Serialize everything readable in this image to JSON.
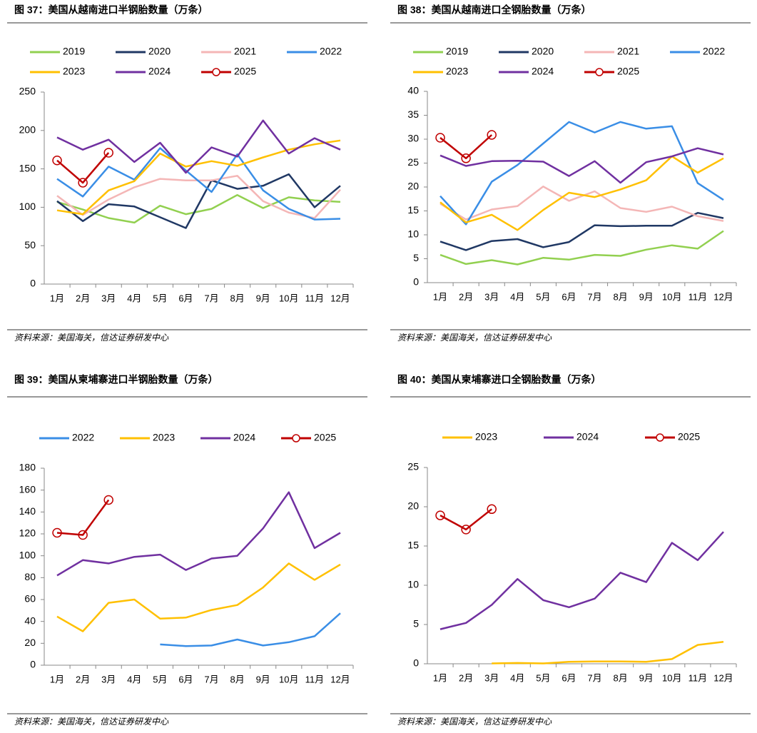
{
  "chart_data": [
    {
      "type": "line",
      "title": "图 37：美国从越南进口半钢胎数量（万条）",
      "source": "资料来源：美国海关，信达证券研发中心",
      "categories": [
        "1月",
        "2月",
        "3月",
        "4月",
        "5月",
        "6月",
        "7月",
        "8月",
        "9月",
        "10月",
        "11月",
        "12月"
      ],
      "ylim": [
        0,
        250
      ],
      "yticks": [
        0,
        50,
        100,
        150,
        200,
        250
      ],
      "series": [
        {
          "name": "2019",
          "color": "#92d050",
          "values": [
            107,
            97,
            86,
            80,
            102,
            91,
            98,
            116,
            99,
            113,
            109,
            107
          ]
        },
        {
          "name": "2020",
          "color": "#203864",
          "values": [
            108,
            82,
            104,
            101,
            87,
            73,
            135,
            124,
            128,
            143,
            100,
            128
          ]
        },
        {
          "name": "2021",
          "color": "#f4b6b6",
          "values": [
            115,
            90,
            110,
            126,
            137,
            135,
            135,
            141,
            108,
            93,
            86,
            123
          ]
        },
        {
          "name": "2022",
          "color": "#3a8ee6",
          "values": [
            137,
            114,
            153,
            136,
            177,
            148,
            120,
            169,
            122,
            98,
            84,
            85
          ]
        },
        {
          "name": "2023",
          "color": "#ffc000",
          "values": [
            96,
            91,
            122,
            134,
            170,
            153,
            160,
            154,
            165,
            175,
            182,
            187
          ]
        },
        {
          "name": "2024",
          "color": "#7030a0",
          "values": [
            191,
            175,
            188,
            159,
            184,
            145,
            178,
            166,
            213,
            170,
            190,
            175
          ]
        },
        {
          "name": "2025",
          "color": "#c00000",
          "marker": "circle",
          "values": [
            161,
            132,
            171,
            null,
            null,
            null,
            null,
            null,
            null,
            null,
            null,
            null
          ]
        }
      ]
    },
    {
      "type": "line",
      "title": "图 38：美国从越南进口全钢胎数量（万条）",
      "source": "资料来源：美国海关，信达证券研发中心",
      "categories": [
        "1月",
        "2月",
        "3月",
        "4月",
        "5月",
        "6月",
        "7月",
        "8月",
        "9月",
        "10月",
        "11月",
        "12月"
      ],
      "ylim": [
        0,
        40
      ],
      "yticks": [
        0,
        5,
        10,
        15,
        20,
        25,
        30,
        35,
        40
      ],
      "series": [
        {
          "name": "2019",
          "color": "#92d050",
          "values": [
            5.8,
            3.9,
            4.7,
            3.8,
            5.2,
            4.8,
            5.8,
            5.6,
            6.9,
            7.8,
            7.1,
            10.8
          ]
        },
        {
          "name": "2020",
          "color": "#203864",
          "values": [
            8.6,
            6.8,
            8.7,
            9.1,
            7.4,
            8.5,
            12.0,
            11.8,
            11.9,
            11.9,
            14.6,
            13.5
          ]
        },
        {
          "name": "2021",
          "color": "#f4b6b6",
          "values": [
            16.5,
            13.2,
            15.3,
            16.0,
            20.1,
            17.1,
            19.1,
            15.6,
            14.8,
            15.9,
            13.9,
            12.9
          ]
        },
        {
          "name": "2022",
          "color": "#3a8ee6",
          "values": [
            18.1,
            12.2,
            21.1,
            24.6,
            29.1,
            33.6,
            31.4,
            33.6,
            32.2,
            32.7,
            20.8,
            17.3
          ]
        },
        {
          "name": "2023",
          "color": "#ffc000",
          "values": [
            16.8,
            12.6,
            14.2,
            11.0,
            15.2,
            18.8,
            17.9,
            19.5,
            21.4,
            26.4,
            23.0,
            26.0
          ]
        },
        {
          "name": "2024",
          "color": "#7030a0",
          "values": [
            26.6,
            24.4,
            25.4,
            25.5,
            25.3,
            22.3,
            25.4,
            20.9,
            25.2,
            26.4,
            28.1,
            26.8
          ]
        },
        {
          "name": "2025",
          "color": "#c00000",
          "marker": "circle",
          "values": [
            30.3,
            26.0,
            30.9,
            null,
            null,
            null,
            null,
            null,
            null,
            null,
            null,
            null
          ]
        }
      ]
    },
    {
      "type": "line",
      "title": "图 39：美国从柬埔寨进口半钢胎数量（万条）",
      "source": "资料来源：美国海关，信达证券研发中心",
      "categories": [
        "1月",
        "2月",
        "3月",
        "4月",
        "5月",
        "6月",
        "7月",
        "8月",
        "9月",
        "10月",
        "11月",
        "12月"
      ],
      "ylim": [
        0,
        180
      ],
      "yticks": [
        0,
        20,
        40,
        60,
        80,
        100,
        120,
        140,
        160,
        180
      ],
      "series": [
        {
          "name": "2022",
          "color": "#3a8ee6",
          "values": [
            null,
            null,
            null,
            null,
            19,
            17.5,
            18,
            23.5,
            18,
            21,
            26.5,
            47.5
          ]
        },
        {
          "name": "2023",
          "color": "#ffc000",
          "values": [
            44.5,
            31,
            57,
            60,
            42.5,
            43.5,
            50.5,
            55,
            71,
            93,
            78,
            92
          ]
        },
        {
          "name": "2024",
          "color": "#7030a0",
          "values": [
            82,
            96,
            93,
            99,
            101,
            87,
            97.5,
            100,
            125,
            158,
            107,
            121
          ]
        },
        {
          "name": "2025",
          "color": "#c00000",
          "marker": "circle",
          "values": [
            121,
            119,
            151,
            null,
            null,
            null,
            null,
            null,
            null,
            null,
            null,
            null
          ]
        }
      ]
    },
    {
      "type": "line",
      "title": "图 40：美国从柬埔寨进口全钢胎数量（万条）",
      "source": "资料来源：美国海关，信达证券研发中心",
      "categories": [
        "1月",
        "2月",
        "3月",
        "4月",
        "5月",
        "6月",
        "7月",
        "8月",
        "9月",
        "10月",
        "11月",
        "12月"
      ],
      "ylim": [
        0,
        25
      ],
      "yticks": [
        0,
        5,
        10,
        15,
        20,
        25
      ],
      "series": [
        {
          "name": "2023",
          "color": "#ffc000",
          "values": [
            null,
            null,
            0.05,
            0.1,
            0.05,
            0.25,
            0.3,
            0.3,
            0.25,
            0.6,
            2.4,
            2.8
          ]
        },
        {
          "name": "2024",
          "color": "#7030a0",
          "values": [
            4.4,
            5.2,
            7.5,
            10.8,
            8.1,
            7.2,
            8.3,
            11.6,
            10.4,
            15.4,
            13.2,
            16.8
          ]
        },
        {
          "name": "2025",
          "color": "#c00000",
          "marker": "circle",
          "values": [
            18.9,
            17.1,
            19.7,
            null,
            null,
            null,
            null,
            null,
            null,
            null,
            null,
            null
          ]
        }
      ]
    }
  ]
}
